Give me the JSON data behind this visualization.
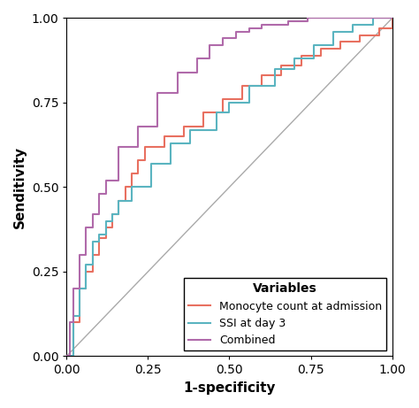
{
  "title": "",
  "xlabel": "1-specificity",
  "ylabel": "Senditivity",
  "xlim": [
    0.0,
    1.0
  ],
  "ylim": [
    0.0,
    1.0
  ],
  "xticks": [
    0.0,
    0.25,
    0.5,
    0.75,
    1.0
  ],
  "yticks": [
    0.0,
    0.25,
    0.5,
    0.75,
    1.0
  ],
  "diagonal_color": "#aaaaaa",
  "legend_title": "Variables",
  "legend_labels": [
    "Monocyte count at admission",
    "SSI at day 3",
    "Combined"
  ],
  "legend_colors": [
    "#e87060",
    "#5ab4c0",
    "#b06aaa"
  ],
  "monocyte_fpr": [
    0.0,
    0.02,
    0.02,
    0.04,
    0.04,
    0.06,
    0.06,
    0.08,
    0.08,
    0.1,
    0.1,
    0.12,
    0.12,
    0.14,
    0.14,
    0.16,
    0.16,
    0.18,
    0.18,
    0.2,
    0.2,
    0.22,
    0.22,
    0.24,
    0.24,
    0.3,
    0.3,
    0.36,
    0.36,
    0.42,
    0.42,
    0.48,
    0.48,
    0.54,
    0.54,
    0.6,
    0.6,
    0.66,
    0.66,
    0.72,
    0.72,
    0.78,
    0.78,
    0.84,
    0.84,
    0.9,
    0.9,
    0.96,
    0.96,
    1.0
  ],
  "monocyte_tpr": [
    0.0,
    0.0,
    0.1,
    0.1,
    0.2,
    0.2,
    0.25,
    0.25,
    0.3,
    0.3,
    0.35,
    0.35,
    0.38,
    0.38,
    0.42,
    0.42,
    0.46,
    0.46,
    0.5,
    0.5,
    0.54,
    0.54,
    0.58,
    0.58,
    0.62,
    0.62,
    0.65,
    0.65,
    0.68,
    0.68,
    0.72,
    0.72,
    0.76,
    0.76,
    0.8,
    0.8,
    0.83,
    0.83,
    0.86,
    0.86,
    0.89,
    0.89,
    0.91,
    0.91,
    0.93,
    0.93,
    0.95,
    0.95,
    0.97,
    1.0
  ],
  "ssi_fpr": [
    0.0,
    0.02,
    0.02,
    0.04,
    0.04,
    0.06,
    0.06,
    0.08,
    0.08,
    0.1,
    0.1,
    0.12,
    0.12,
    0.14,
    0.14,
    0.16,
    0.16,
    0.2,
    0.2,
    0.26,
    0.26,
    0.32,
    0.32,
    0.38,
    0.38,
    0.46,
    0.46,
    0.5,
    0.5,
    0.56,
    0.56,
    0.64,
    0.64,
    0.7,
    0.7,
    0.76,
    0.76,
    0.82,
    0.82,
    0.88,
    0.88,
    0.94,
    0.94,
    1.0
  ],
  "ssi_tpr": [
    0.0,
    0.0,
    0.12,
    0.12,
    0.2,
    0.2,
    0.27,
    0.27,
    0.34,
    0.34,
    0.36,
    0.36,
    0.4,
    0.4,
    0.42,
    0.42,
    0.46,
    0.46,
    0.5,
    0.5,
    0.57,
    0.57,
    0.63,
    0.63,
    0.67,
    0.67,
    0.72,
    0.72,
    0.75,
    0.75,
    0.8,
    0.8,
    0.85,
    0.85,
    0.88,
    0.88,
    0.92,
    0.92,
    0.96,
    0.96,
    0.98,
    0.98,
    1.0,
    1.0
  ],
  "combined_fpr": [
    0.0,
    0.01,
    0.01,
    0.02,
    0.02,
    0.04,
    0.04,
    0.06,
    0.06,
    0.08,
    0.08,
    0.1,
    0.1,
    0.12,
    0.12,
    0.16,
    0.16,
    0.22,
    0.22,
    0.28,
    0.28,
    0.34,
    0.34,
    0.4,
    0.4,
    0.44,
    0.44,
    0.48,
    0.48,
    0.52,
    0.52,
    0.56,
    0.56,
    0.6,
    0.6,
    0.68,
    0.68,
    0.74,
    0.74,
    0.8,
    0.8,
    0.9,
    0.9,
    0.96,
    0.96,
    1.0
  ],
  "combined_tpr": [
    0.0,
    0.0,
    0.1,
    0.1,
    0.2,
    0.2,
    0.3,
    0.3,
    0.38,
    0.38,
    0.42,
    0.42,
    0.48,
    0.48,
    0.52,
    0.52,
    0.62,
    0.62,
    0.68,
    0.68,
    0.78,
    0.78,
    0.84,
    0.84,
    0.88,
    0.88,
    0.92,
    0.92,
    0.94,
    0.94,
    0.96,
    0.96,
    0.97,
    0.97,
    0.98,
    0.98,
    0.99,
    0.99,
    1.0,
    1.0,
    1.0,
    1.0,
    1.0,
    1.0,
    1.0,
    1.0
  ],
  "line_width": 1.5,
  "font_size": 11,
  "tick_font_size": 10,
  "legend_font_size": 9,
  "legend_title_font_size": 10
}
